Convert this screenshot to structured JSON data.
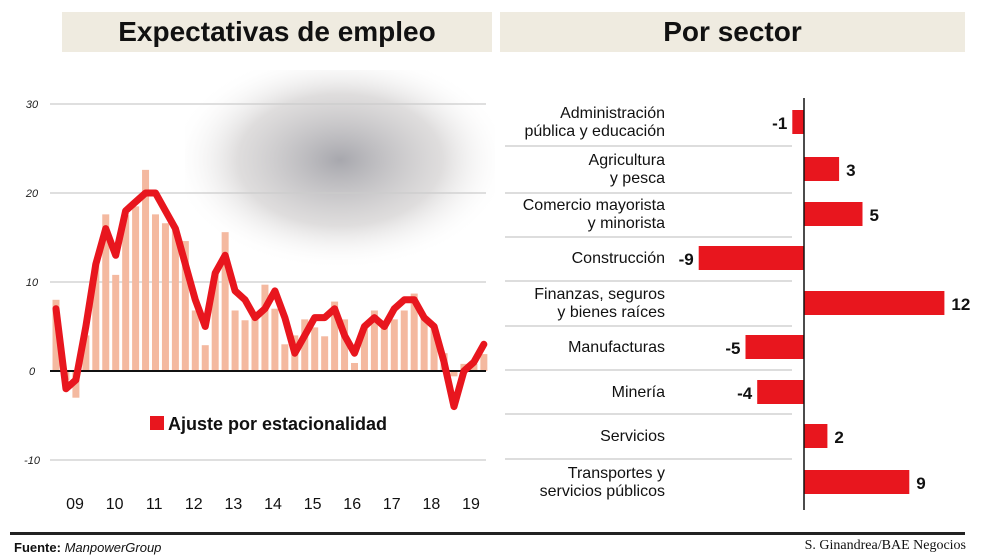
{
  "headers": {
    "left": "Expectativas de empleo",
    "right": "Por sector"
  },
  "footer": {
    "source_label": "Fuente:",
    "source": "ManpowerGroup",
    "credit": "S. Ginandrea/BAE Negocios"
  },
  "chart_data": [
    {
      "type": "bar+line",
      "title": "Expectativas de empleo",
      "x_tick_labels": [
        "09",
        "10",
        "11",
        "12",
        "13",
        "14",
        "15",
        "16",
        "17",
        "18",
        "19"
      ],
      "y_ticks": [
        30,
        20,
        10,
        0,
        -10
      ],
      "ylim": [
        -12,
        32
      ],
      "grid": true,
      "legend": {
        "label": "Ajuste por estacionalidad",
        "placement": "bottom-center"
      },
      "bar_color": "#f4b9a0",
      "line_color": "#e8161e",
      "bars": [
        8,
        -1,
        -3,
        4,
        12,
        17.6,
        10.8,
        17.5,
        18.5,
        22.6,
        17.6,
        16.6,
        15.9,
        14.6,
        6.8,
        2.9,
        11,
        15.6,
        6.8,
        5.7,
        6,
        9.7,
        7,
        3,
        4,
        5.8,
        4.9,
        3.9,
        7.8,
        5.8,
        0.9,
        5,
        6.8,
        5,
        5.8,
        6.8,
        8.7,
        6,
        5,
        2,
        -0.6,
        0.8,
        0.8,
        1.9
      ],
      "series": [
        {
          "name": "Ajuste por estacionalidad",
          "values": [
            7,
            -2,
            -1,
            5,
            12,
            16,
            13,
            18,
            19,
            20,
            20,
            18,
            16,
            12,
            8,
            5,
            11,
            13,
            9,
            8,
            6,
            7,
            9,
            6,
            2,
            4,
            6,
            6,
            7,
            4,
            2,
            5,
            6,
            5,
            7,
            8,
            8,
            6,
            5,
            1,
            -4,
            0,
            1,
            3
          ]
        }
      ]
    },
    {
      "type": "bar",
      "orientation": "horizontal",
      "title": "Por sector",
      "categories": [
        "Administración\npública y educación",
        "Agricultura\ny pesca",
        "Comercio mayorista\ny minorista",
        "Construcción",
        "Finanzas, seguros\ny bienes raíces",
        "Manufacturas",
        "Minería",
        "Servicios",
        "Transportes y\nservicios públicos"
      ],
      "values": [
        -1,
        3,
        5,
        -9,
        12,
        -5,
        -4,
        2,
        9
      ],
      "bar_color": "#e8161e"
    }
  ]
}
